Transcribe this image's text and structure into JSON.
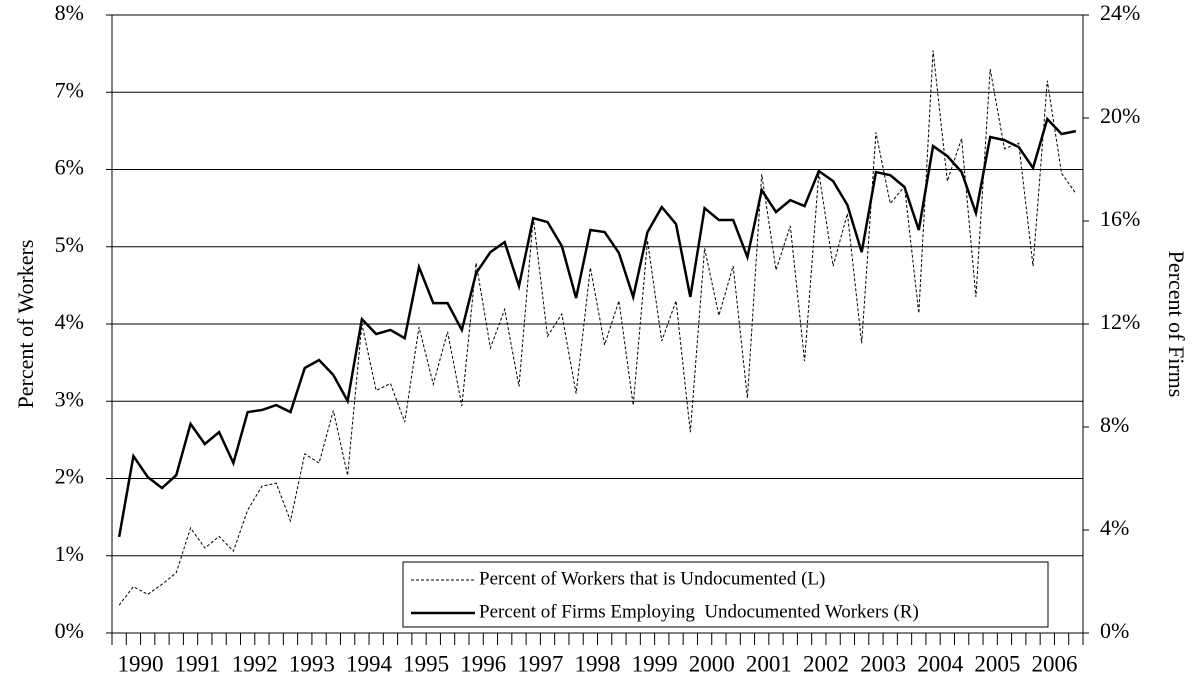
{
  "chart_data": {
    "type": "line",
    "y_label": "Percent of Workers",
    "y2_label": "Percent of Firms",
    "categories": [
      "1990",
      null,
      null,
      null,
      "1991",
      null,
      null,
      null,
      "1992",
      null,
      null,
      null,
      "1993",
      null,
      null,
      null,
      "1994",
      null,
      null,
      null,
      "1995",
      null,
      null,
      null,
      "1996",
      null,
      null,
      null,
      "1997",
      null,
      null,
      null,
      "1998",
      null,
      null,
      null,
      "1999",
      null,
      null,
      null,
      "2000",
      null,
      null,
      null,
      "2001",
      null,
      null,
      null,
      "2002",
      null,
      null,
      null,
      "2003",
      null,
      null,
      null,
      "2004",
      null,
      null,
      null,
      "2005",
      null,
      null,
      null,
      "2006",
      null,
      null,
      null
    ],
    "series": [
      {
        "name": "Percent of Workers that is Undocumented (L)",
        "color": "#000000",
        "dashed": true,
        "axis": "y",
        "values": [
          0.36,
          0.6,
          0.5,
          0.63,
          0.78,
          1.36,
          1.1,
          1.25,
          1.06,
          1.59,
          1.9,
          1.94,
          1.45,
          2.32,
          2.2,
          2.88,
          2.04,
          4.0,
          3.14,
          3.23,
          2.73,
          3.96,
          3.22,
          3.9,
          2.94,
          4.79,
          3.69,
          4.19,
          3.19,
          5.38,
          3.84,
          4.13,
          3.1,
          4.73,
          3.73,
          4.3,
          2.95,
          5.08,
          3.78,
          4.3,
          2.6,
          4.98,
          4.11,
          4.75,
          3.04,
          5.94,
          4.7,
          5.27,
          3.52,
          5.96,
          4.75,
          5.43,
          3.75,
          6.48,
          5.56,
          5.78,
          4.14,
          7.54,
          5.85,
          6.4,
          4.35,
          7.3,
          6.27,
          6.34,
          4.75,
          7.15,
          5.95,
          5.69
        ]
      },
      {
        "name": "Percent of Firms Employing  Undocumented Workers (R)",
        "color": "#000000",
        "dashed": false,
        "axis": "y2",
        "values": [
          3.73,
          6.87,
          6.06,
          5.63,
          6.13,
          8.12,
          7.34,
          7.8,
          6.6,
          8.58,
          8.66,
          8.85,
          8.58,
          10.29,
          10.6,
          10.02,
          9.01,
          12.19,
          11.61,
          11.77,
          11.45,
          14.21,
          12.81,
          12.81,
          11.77,
          13.98,
          14.79,
          15.18,
          13.47,
          16.11,
          15.96,
          15.03,
          13.01,
          15.65,
          15.57,
          14.76,
          13.05,
          15.57,
          16.54,
          15.88,
          13.05,
          16.5,
          16.04,
          16.04,
          14.6,
          17.2,
          16.35,
          16.81,
          16.58,
          17.94,
          17.55,
          16.62,
          14.79,
          17.9,
          17.78,
          17.32,
          15.65,
          18.91,
          18.52,
          17.9,
          16.31,
          19.26,
          19.14,
          18.87,
          18.06,
          19.96,
          19.38,
          19.49
        ]
      }
    ],
    "ylim": [
      0,
      8
    ],
    "yticks": [
      {
        "value": 0,
        "label": "0%"
      },
      {
        "value": 1,
        "label": "1%"
      },
      {
        "value": 2,
        "label": "2%"
      },
      {
        "value": 3,
        "label": "3%"
      },
      {
        "value": 4,
        "label": "4%"
      },
      {
        "value": 5,
        "label": "5%"
      },
      {
        "value": 6,
        "label": "6%"
      },
      {
        "value": 7,
        "label": "7%"
      },
      {
        "value": 8,
        "label": "8%"
      }
    ],
    "y2lim": [
      0,
      24
    ],
    "y2ticks": [
      {
        "value": 0,
        "label": "0%"
      },
      {
        "value": 4,
        "label": "4%"
      },
      {
        "value": 8,
        "label": "8%"
      },
      {
        "value": 12,
        "label": "12%"
      },
      {
        "value": 16,
        "label": "16%"
      },
      {
        "value": 20,
        "label": "20%"
      },
      {
        "value": 24,
        "label": "24%"
      }
    ],
    "grid": true
  }
}
